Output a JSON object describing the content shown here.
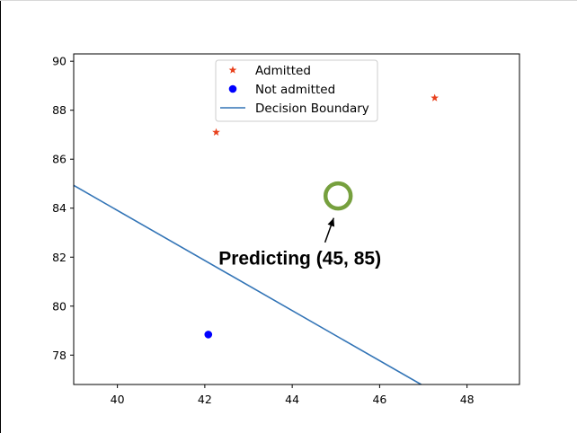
{
  "chart_data": {
    "type": "scatter",
    "xlim": [
      39.0,
      49.2
    ],
    "ylim": [
      76.8,
      90.3
    ],
    "x_ticks": [
      {
        "value": 40,
        "label": "40"
      },
      {
        "value": 42,
        "label": "42"
      },
      {
        "value": 44,
        "label": "44"
      },
      {
        "value": 46,
        "label": "46"
      },
      {
        "value": 48,
        "label": "48"
      }
    ],
    "y_ticks": [
      {
        "value": 78,
        "label": "78"
      },
      {
        "value": 80,
        "label": "80"
      },
      {
        "value": 82,
        "label": "82"
      },
      {
        "value": 84,
        "label": "84"
      },
      {
        "value": 86,
        "label": "86"
      },
      {
        "value": 88,
        "label": "88"
      },
      {
        "value": 90,
        "label": "90"
      }
    ],
    "grid": false,
    "legend_position": "top-center",
    "series": [
      {
        "name": "Admitted",
        "marker": "star",
        "color": "#e8401c",
        "points": [
          {
            "x": 42.26,
            "y": 87.1
          },
          {
            "x": 47.26,
            "y": 88.5
          }
        ]
      },
      {
        "name": "Not admitted",
        "marker": "circle",
        "color": "#0000ff",
        "points": [
          {
            "x": 42.08,
            "y": 78.84
          }
        ]
      },
      {
        "name": "Decision Boundary",
        "marker": "line",
        "color": "#3274b6",
        "points": [
          {
            "x": 39.0,
            "y": 84.93
          },
          {
            "x": 46.95,
            "y": 76.8
          }
        ]
      }
    ],
    "prediction": {
      "x": 45.05,
      "y": 84.5,
      "color": "#76a03e"
    },
    "annotation": {
      "text": "Predicting  (45, 85)",
      "text_x": 42.5,
      "text_y": 81.8,
      "arrow_start": {
        "x": 44.75,
        "y": 82.6
      },
      "arrow_end": {
        "x": 44.95,
        "y": 83.6
      }
    }
  }
}
